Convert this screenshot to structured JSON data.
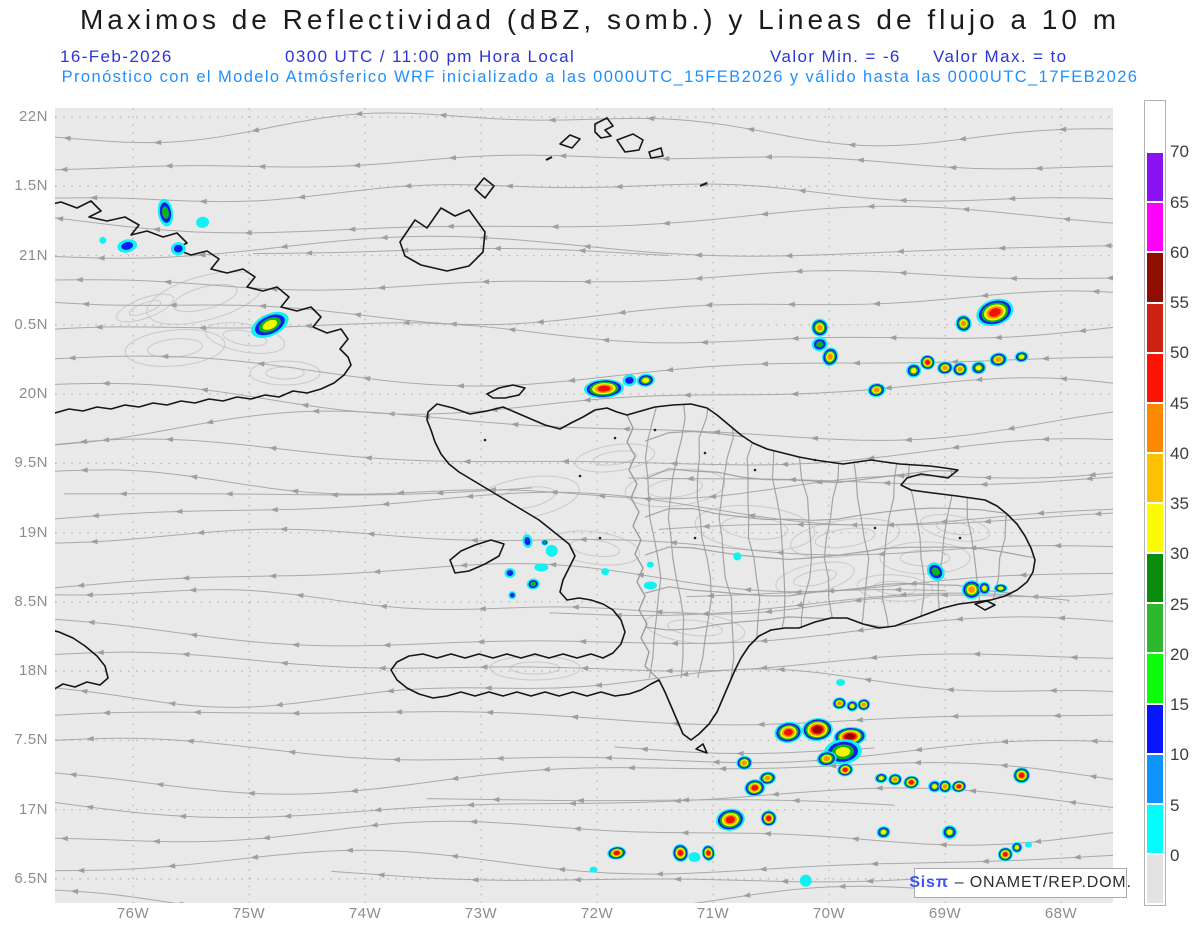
{
  "header": {
    "title": "Maximos de Reflectividad (dBZ, somb.) y Lineas de flujo a 10 m",
    "issued_date": "16-Feb-2026",
    "valid_time": "0300 UTC / 11:00 pm Hora Local",
    "valor_min": "Valor Min. = -6",
    "valor_max": "Valor Max. = to",
    "model_line": "Pronóstico con el Modelo Atmósferico WRF inicializado a las 0000UTC_15FEB2026 y válido hasta las  0000UTC_17FEB2026"
  },
  "watermark": {
    "brand": "Sisπ",
    "rest": "– ONAMET/REP.DOM."
  },
  "axes": {
    "lat_labels": [
      "22N",
      "1.5N",
      "21N",
      "0.5N",
      "20N",
      "9.5N",
      "19N",
      "8.5N",
      "18N",
      "7.5N",
      "17N",
      "6.5N"
    ],
    "lon_labels": [
      "76W",
      "75W",
      "74W",
      "73W",
      "72W",
      "71W",
      "70W",
      "69W",
      "68W"
    ]
  },
  "colorbar": {
    "tick_labels": [
      "70",
      "65",
      "60",
      "55",
      "50",
      "45",
      "40",
      "35",
      "30",
      "25",
      "20",
      "15",
      "10",
      "5",
      "0"
    ],
    "cell_colors_top_to_bottom": [
      "#ffffff",
      "#8a12f0",
      "#fb02fb",
      "#8f0d02",
      "#cc2211",
      "#fb1403",
      "#fc8802",
      "#fcc102",
      "#fbfb08",
      "#0b8c0b",
      "#2eb82e",
      "#0cfb0c",
      "#0816fb",
      "#0f94fb",
      "#06fbfb",
      "#e3e3e3"
    ]
  },
  "chart_data": {
    "type": "heatmap",
    "subtype": "weather-map-reflectivity-with-streamlines",
    "title": "Maximos de Reflectividad (dBZ, somb.) y Lineas de flujo a 10 m",
    "variable": "Maximum reflectivity (dBZ, shaded)",
    "overlay": "10 m wind streamlines (gray, flowing east to west)",
    "model": "WRF",
    "valid": "16-Feb-2026 0300 UTC / 11:00 pm Hora Local",
    "value_min": -6,
    "region": {
      "lon_min": -76.67,
      "lon_max": -67.39,
      "lat_min": 16.33,
      "lat_max": 22.06
    },
    "levels_dbz": [
      0,
      5,
      10,
      15,
      20,
      25,
      30,
      35,
      40,
      45,
      50,
      55,
      60,
      65,
      70
    ],
    "ring_levels": [
      {
        "dbz": 0,
        "color": "#10f2f2"
      },
      {
        "dbz": 10,
        "color": "#0a1ef0"
      },
      {
        "dbz": 20,
        "color": "#09b41e"
      },
      {
        "dbz": 30,
        "color": "#f6f600"
      },
      {
        "dbz": 40,
        "color": "#fb9100"
      },
      {
        "dbz": 45,
        "color": "#f50f00"
      },
      {
        "dbz": 55,
        "color": "#9b0000"
      }
    ],
    "storm_cell_schema": [
      "lon",
      "lat",
      "width_px",
      "height_px",
      "max_dbz",
      "rotation_deg"
    ],
    "storm_cells": [
      [
        -75.72,
        21.31,
        15,
        28,
        20,
        -8
      ],
      [
        -75.4,
        21.24,
        13,
        11,
        0,
        -8
      ],
      [
        -76.26,
        21.11,
        7,
        7,
        0,
        0
      ],
      [
        -76.05,
        21.07,
        20,
        13,
        10,
        -12
      ],
      [
        -75.61,
        21.05,
        15,
        13,
        10,
        -8
      ],
      [
        -74.82,
        20.5,
        40,
        22,
        35,
        -25
      ],
      [
        -71.94,
        20.04,
        40,
        19,
        50,
        -3
      ],
      [
        -71.72,
        20.1,
        14,
        12,
        10,
        -8
      ],
      [
        -71.58,
        20.1,
        18,
        13,
        35,
        -8
      ],
      [
        -68.57,
        20.59,
        38,
        26,
        50,
        -18
      ],
      [
        -68.84,
        20.51,
        16,
        17,
        40,
        -8
      ],
      [
        -69.59,
        20.03,
        18,
        14,
        40,
        -8
      ],
      [
        -69.27,
        20.17,
        15,
        14,
        35,
        -8
      ],
      [
        -69.15,
        20.23,
        15,
        15,
        50,
        -8
      ],
      [
        -69.0,
        20.19,
        16,
        13,
        40,
        -8
      ],
      [
        -68.87,
        20.18,
        15,
        14,
        40,
        -8
      ],
      [
        -68.71,
        20.19,
        15,
        13,
        35,
        -8
      ],
      [
        -68.54,
        20.25,
        18,
        14,
        40,
        -8
      ],
      [
        -68.34,
        20.27,
        14,
        11,
        35,
        -8
      ],
      [
        -70.08,
        20.48,
        17,
        18,
        40,
        -8
      ],
      [
        -70.08,
        20.36,
        16,
        14,
        25,
        -8
      ],
      [
        -69.99,
        20.27,
        16,
        19,
        40,
        15
      ],
      [
        -72.6,
        18.94,
        10,
        14,
        15,
        -8
      ],
      [
        -72.45,
        18.93,
        7,
        6,
        20,
        0
      ],
      [
        -72.39,
        18.87,
        12,
        12,
        0,
        0
      ],
      [
        -72.48,
        18.75,
        14,
        8,
        0,
        0
      ],
      [
        -72.75,
        18.71,
        11,
        10,
        10,
        -8
      ],
      [
        -72.55,
        18.63,
        13,
        11,
        25,
        -8
      ],
      [
        -72.73,
        18.55,
        8,
        8,
        10,
        0
      ],
      [
        -71.93,
        18.72,
        8,
        7,
        0,
        0
      ],
      [
        -71.54,
        18.77,
        7,
        6,
        0,
        0
      ],
      [
        -71.54,
        18.62,
        13,
        8,
        0,
        0
      ],
      [
        -70.79,
        18.83,
        8,
        8,
        0,
        0
      ],
      [
        -69.08,
        18.72,
        16,
        20,
        25,
        -40
      ],
      [
        -68.77,
        18.59,
        20,
        19,
        40,
        -8
      ],
      [
        -68.66,
        18.6,
        12,
        13,
        30,
        -8
      ],
      [
        -68.52,
        18.6,
        14,
        9,
        30,
        0
      ],
      [
        -69.91,
        17.77,
        14,
        12,
        40,
        -8
      ],
      [
        -69.8,
        17.75,
        12,
        11,
        35,
        -8
      ],
      [
        -69.7,
        17.76,
        13,
        12,
        40,
        -8
      ],
      [
        -70.35,
        17.56,
        28,
        21,
        50,
        -8
      ],
      [
        -70.1,
        17.58,
        31,
        23,
        60,
        -5
      ],
      [
        -69.82,
        17.53,
        33,
        19,
        55,
        -5
      ],
      [
        -69.88,
        17.42,
        38,
        25,
        35,
        -5
      ],
      [
        -70.02,
        17.37,
        20,
        15,
        40,
        -8
      ],
      [
        -69.86,
        17.29,
        16,
        13,
        45,
        -8
      ],
      [
        -70.73,
        17.34,
        16,
        14,
        40,
        -8
      ],
      [
        -70.53,
        17.23,
        17,
        13,
        40,
        -8
      ],
      [
        -70.64,
        17.16,
        21,
        17,
        50,
        -8
      ],
      [
        -69.55,
        17.23,
        13,
        10,
        30,
        -8
      ],
      [
        -69.43,
        17.22,
        14,
        12,
        40,
        -8
      ],
      [
        -69.29,
        17.2,
        16,
        13,
        50,
        -8
      ],
      [
        -69.09,
        17.17,
        13,
        12,
        35,
        -8
      ],
      [
        -69.0,
        17.17,
        13,
        13,
        40,
        -8
      ],
      [
        -68.88,
        17.17,
        15,
        12,
        50,
        -8
      ],
      [
        -68.34,
        17.25,
        17,
        16,
        50,
        -8
      ],
      [
        -68.96,
        16.84,
        15,
        14,
        35,
        -8
      ],
      [
        -68.48,
        16.68,
        15,
        14,
        45,
        -8
      ],
      [
        -68.38,
        16.73,
        11,
        11,
        30,
        0
      ],
      [
        -68.28,
        16.75,
        7,
        6,
        0,
        0
      ],
      [
        -70.85,
        16.93,
        29,
        22,
        50,
        -10
      ],
      [
        -70.52,
        16.94,
        16,
        16,
        50,
        -8
      ],
      [
        -71.83,
        16.69,
        19,
        13,
        45,
        -8
      ],
      [
        -71.28,
        16.69,
        16,
        18,
        45,
        -8
      ],
      [
        -71.16,
        16.66,
        12,
        10,
        0,
        0
      ],
      [
        -71.04,
        16.69,
        13,
        16,
        45,
        -8
      ],
      [
        -70.2,
        16.49,
        12,
        12,
        0,
        0
      ],
      [
        -69.53,
        16.84,
        14,
        12,
        35,
        -8
      ],
      [
        -69.9,
        17.92,
        9,
        7,
        5,
        0
      ],
      [
        -72.03,
        16.57,
        8,
        6,
        0,
        0
      ]
    ],
    "layout_hints": {
      "background_color": "#e9e9e9",
      "streamline_color": "#a9a9a9",
      "arrow_color": "#9c9c9c",
      "coast_color": "#161616",
      "province_color": "#9c9c9c",
      "terrain_line_color": "#c9c9c9",
      "grid_dot_color": "#b6b6b6",
      "legend_position": "right",
      "grid": "dotted, 0.5 deg lat / 1 deg lon"
    }
  }
}
